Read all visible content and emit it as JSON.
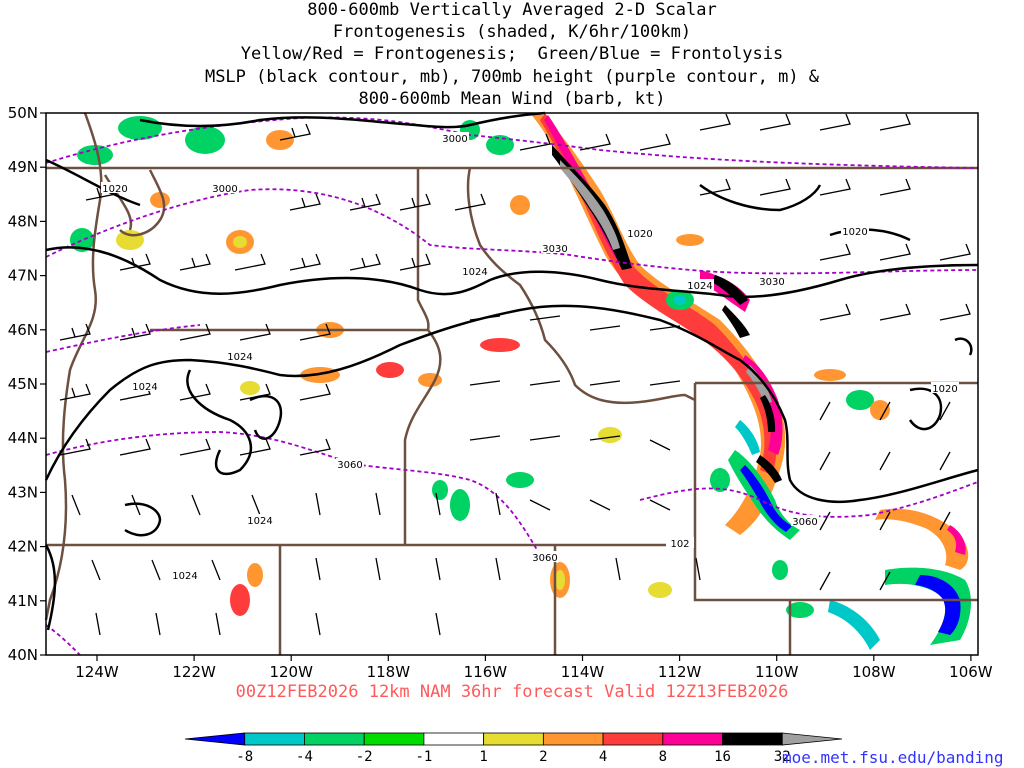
{
  "title": {
    "lines": [
      "800-600mb Vertically Averaged 2-D Scalar",
      "Frontogenesis (shaded, K/6hr/100km)",
      "Yellow/Red = Frontogenesis;  Green/Blue = Frontolysis",
      "MSLP (black contour, mb), 700mb height (purple contour, m) &",
      "800-600mb Mean Wind (barb, kt)"
    ]
  },
  "map": {
    "lat_labels": [
      "50N",
      "49N",
      "48N",
      "47N",
      "46N",
      "45N",
      "44N",
      "43N",
      "42N",
      "41N",
      "40N"
    ],
    "lon_labels": [
      "124W",
      "122W",
      "120W",
      "118W",
      "116W",
      "114W",
      "112W",
      "110W",
      "108W",
      "106W"
    ],
    "mslp_labels": [
      "1020",
      "1020",
      "1024",
      "1024",
      "1024",
      "1024",
      "1024",
      "1024",
      "1020",
      "1020",
      "102"
    ],
    "height_labels": [
      "3000",
      "3000",
      "3030",
      "3030",
      "3060",
      "3060",
      "3060"
    ]
  },
  "valid_time": "00Z12FEB2026 12km NAM 36hr forecast Valid 12Z13FEB2026",
  "colorbar": {
    "labels": [
      "-8",
      "-4",
      "-2",
      "-1",
      "1",
      "2",
      "4",
      "8",
      "16",
      "32"
    ],
    "colors": [
      "#0000ff",
      "#00c8c8",
      "#00d264",
      "#00dc00",
      "#ffffff",
      "#e6dc32",
      "#ff9632",
      "#ff3c3c",
      "#ff0096",
      "#000000",
      "#a0a0a0"
    ]
  },
  "credit": "moe.met.fsu.edu/banding"
}
